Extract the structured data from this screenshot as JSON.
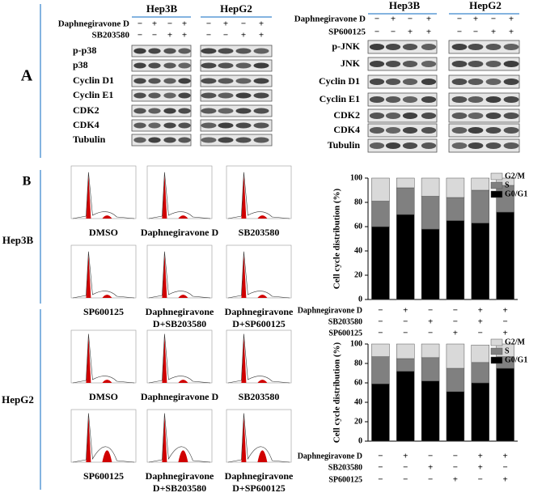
{
  "panel_a": {
    "label": "A",
    "blots": [
      {
        "cell_lines": [
          "Hep3B",
          "HepG2"
        ],
        "treatments": [
          {
            "name": "Daphnegiravone D",
            "signs": [
              "−",
              "+",
              "−",
              "+",
              "−",
              "+",
              "−",
              "+"
            ]
          },
          {
            "name": "SB203580",
            "signs": [
              "−",
              "−",
              "+",
              "+",
              "−",
              "−",
              "+",
              "+"
            ]
          }
        ],
        "proteins": [
          "p-p38",
          "p38",
          "Cyclin D1",
          "Cyclin E1",
          "CDK2",
          "CDK4",
          "Tubulin"
        ]
      },
      {
        "cell_lines": [
          "Hep3B",
          "HepG2"
        ],
        "treatments": [
          {
            "name": "Daphnegiravone D",
            "signs": [
              "−",
              "+",
              "−",
              "+",
              "−",
              "+",
              "−",
              "+"
            ]
          },
          {
            "name": "SP600125",
            "signs": [
              "−",
              "−",
              "+",
              "+",
              "−",
              "−",
              "+",
              "+"
            ]
          }
        ],
        "proteins": [
          "p-JNK",
          "JNK",
          "Cyclin D1",
          "Cyclin E1",
          "CDK2",
          "CDK4",
          "Tubulin"
        ]
      }
    ]
  },
  "panel_b": {
    "label": "B",
    "cell_lines": [
      "Hep3B",
      "HepG2"
    ],
    "captions": [
      [
        "DMSO"
      ],
      [
        "Daphnegiravone D"
      ],
      [
        "SB203580"
      ],
      [
        "SP600125"
      ],
      [
        "Daphnegiravone",
        "D+SB203580"
      ],
      [
        "Daphnegiravone",
        "D+SP600125"
      ]
    ]
  },
  "chart_data": [
    {
      "type": "stacked_bar",
      "ylabel": "Cell cycle distribution (%)",
      "ylim": [
        0,
        100
      ],
      "yticks": [
        0,
        20,
        40,
        60,
        80,
        100
      ],
      "legend": "top-right",
      "treatments": [
        {
          "name": "Daphnegiravone D",
          "signs": [
            "−",
            "+",
            "−",
            "−",
            "+",
            "+"
          ]
        },
        {
          "name": "SB203580",
          "signs": [
            "−",
            "−",
            "+",
            "−",
            "+",
            "−"
          ]
        },
        {
          "name": "SP600125",
          "signs": [
            "−",
            "−",
            "−",
            "+",
            "−",
            "+"
          ]
        }
      ],
      "series": [
        {
          "name": "G0/G1",
          "color": "#000000",
          "values": [
            60,
            70,
            58,
            65,
            63,
            72
          ]
        },
        {
          "name": "S",
          "color": "#808080",
          "values": [
            21,
            22,
            27,
            19,
            27,
            22
          ]
        },
        {
          "name": "G2/M",
          "color": "#d9d9d9",
          "values": [
            19,
            8,
            15,
            16,
            10,
            6
          ]
        }
      ]
    },
    {
      "type": "stacked_bar",
      "ylabel": "Cell cycle distribution (%)",
      "ylim": [
        0,
        100
      ],
      "yticks": [
        0,
        20,
        40,
        60,
        80,
        100
      ],
      "legend": "top-right",
      "treatments": [
        {
          "name": "Daphnegiravone D",
          "signs": [
            "−",
            "+",
            "−",
            "−",
            "+",
            "+"
          ]
        },
        {
          "name": "SB203580",
          "signs": [
            "−",
            "−",
            "+",
            "−",
            "+",
            "−"
          ]
        },
        {
          "name": "SP600125",
          "signs": [
            "−",
            "−",
            "−",
            "+",
            "−",
            "+"
          ]
        }
      ],
      "series": [
        {
          "name": "G0/G1",
          "color": "#000000",
          "values": [
            59,
            72,
            62,
            51,
            60,
            75
          ]
        },
        {
          "name": "S",
          "color": "#808080",
          "values": [
            28,
            13,
            24,
            24,
            21,
            12
          ]
        },
        {
          "name": "G2/M",
          "color": "#d9d9d9",
          "values": [
            13,
            15,
            14,
            25,
            18,
            13
          ]
        }
      ]
    }
  ]
}
